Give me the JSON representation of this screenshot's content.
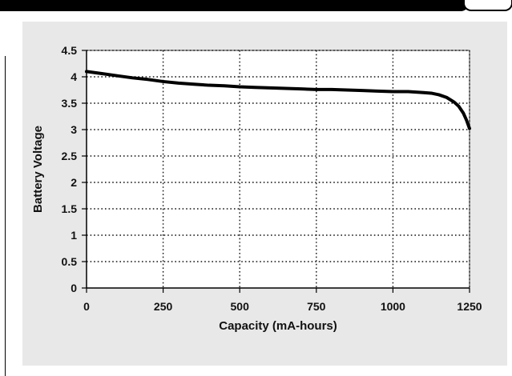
{
  "chart_data": {
    "type": "line",
    "title": "",
    "xlabel": "Capacity (mA-hours)",
    "ylabel": "Battery Voltage",
    "xlim": [
      0,
      1250
    ],
    "ylim": [
      0,
      4.5
    ],
    "xticks": [
      0,
      250,
      500,
      750,
      1000,
      1250
    ],
    "yticks": [
      0,
      0.5,
      1,
      1.5,
      2,
      2.5,
      3,
      3.5,
      4,
      4.5
    ],
    "xtick_labels": [
      "0",
      "250",
      "500",
      "750",
      "1000",
      "1250"
    ],
    "ytick_labels": [
      "0",
      "0.5",
      "1",
      "1.5",
      "2",
      "2.5",
      "3",
      "3.5",
      "4",
      "4.5"
    ],
    "grid": true,
    "grid_style": "dotted",
    "series": [
      {
        "x": [
          0,
          50,
          100,
          150,
          200,
          250,
          300,
          350,
          400,
          450,
          500,
          550,
          600,
          650,
          700,
          750,
          800,
          850,
          900,
          950,
          1000,
          1050,
          1100,
          1125,
          1150,
          1175,
          1200,
          1215,
          1230,
          1240,
          1250
        ],
        "y": [
          4.1,
          4.06,
          4.02,
          3.98,
          3.95,
          3.91,
          3.88,
          3.86,
          3.84,
          3.83,
          3.81,
          3.8,
          3.79,
          3.78,
          3.77,
          3.76,
          3.76,
          3.75,
          3.74,
          3.73,
          3.72,
          3.72,
          3.7,
          3.69,
          3.66,
          3.61,
          3.52,
          3.44,
          3.31,
          3.18,
          3.02
        ],
        "color": "#000000"
      }
    ],
    "colors": {
      "background": "#e8e8e8",
      "plot_area": "#ffffff",
      "line": "#000000",
      "grid": "#111111"
    }
  }
}
